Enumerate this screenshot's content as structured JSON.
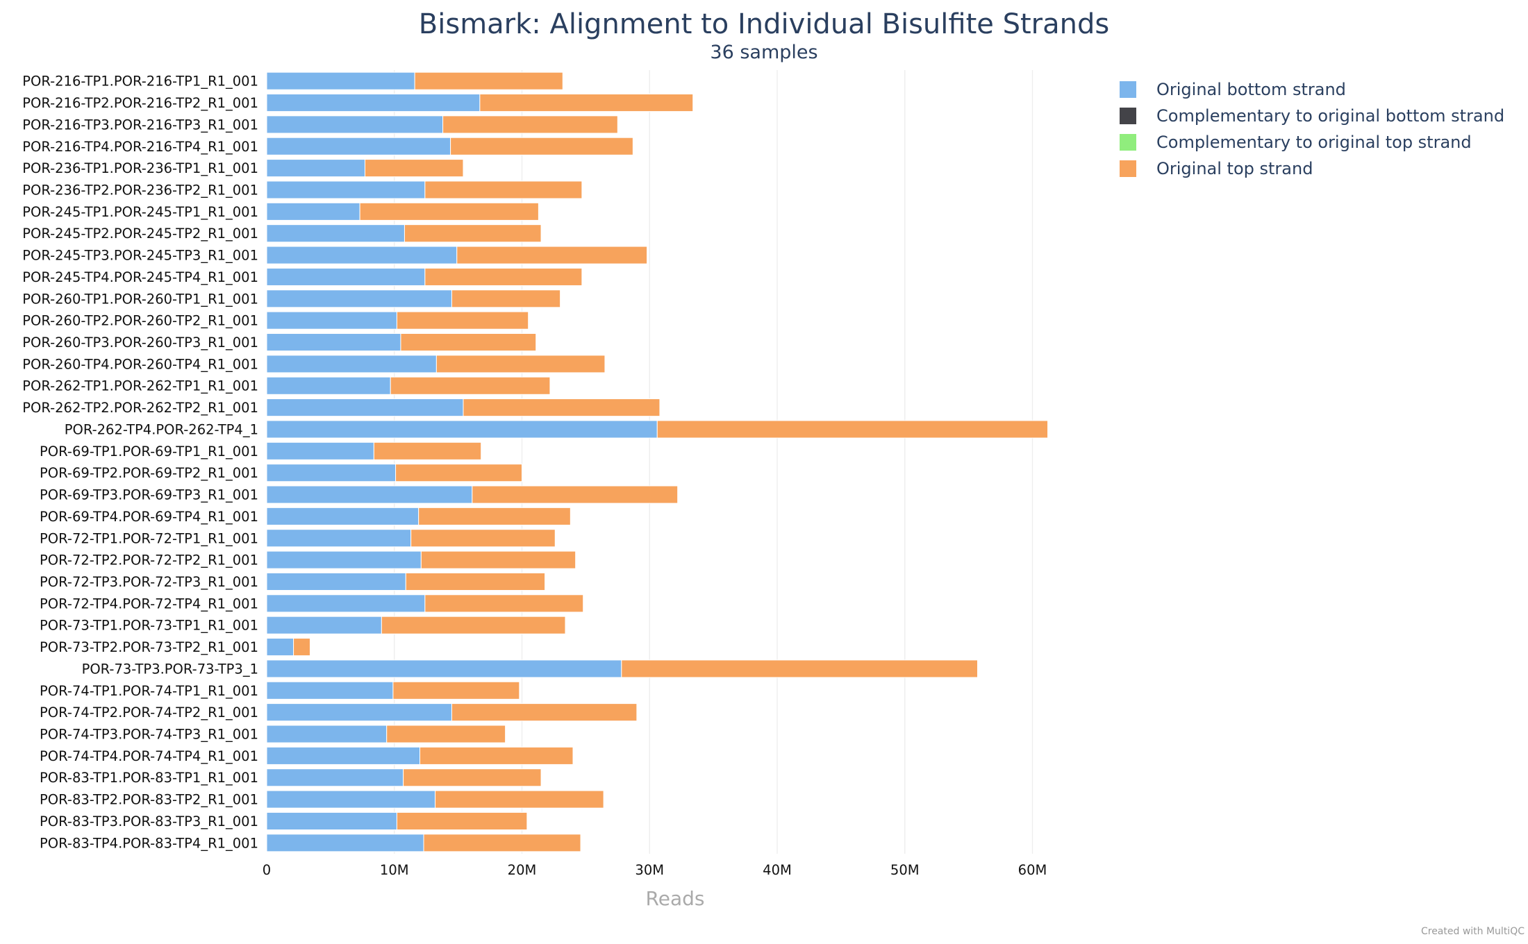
{
  "chart_data": {
    "type": "bar",
    "orientation": "horizontal",
    "stacked": true,
    "title": "Bismark: Alignment to Individual Bisulfite Strands",
    "subtitle": "36 samples",
    "xlabel": "Reads",
    "ylabel": "",
    "xlim": [
      0,
      64000000
    ],
    "xticks": [
      0,
      10000000,
      20000000,
      30000000,
      40000000,
      50000000,
      60000000
    ],
    "xtick_labels": [
      "0",
      "10M",
      "20M",
      "30M",
      "40M",
      "50M",
      "60M"
    ],
    "grid": true,
    "legend_position": "top-right",
    "categories": [
      "POR-216-TP1.POR-216-TP1_R1_001",
      "POR-216-TP2.POR-216-TP2_R1_001",
      "POR-216-TP3.POR-216-TP3_R1_001",
      "POR-216-TP4.POR-216-TP4_R1_001",
      "POR-236-TP1.POR-236-TP1_R1_001",
      "POR-236-TP2.POR-236-TP2_R1_001",
      "POR-245-TP1.POR-245-TP1_R1_001",
      "POR-245-TP2.POR-245-TP2_R1_001",
      "POR-245-TP3.POR-245-TP3_R1_001",
      "POR-245-TP4.POR-245-TP4_R1_001",
      "POR-260-TP1.POR-260-TP1_R1_001",
      "POR-260-TP2.POR-260-TP2_R1_001",
      "POR-260-TP3.POR-260-TP3_R1_001",
      "POR-260-TP4.POR-260-TP4_R1_001",
      "POR-262-TP1.POR-262-TP1_R1_001",
      "POR-262-TP2.POR-262-TP2_R1_001",
      "POR-262-TP4.POR-262-TP4_1",
      "POR-69-TP1.POR-69-TP1_R1_001",
      "POR-69-TP2.POR-69-TP2_R1_001",
      "POR-69-TP3.POR-69-TP3_R1_001",
      "POR-69-TP4.POR-69-TP4_R1_001",
      "POR-72-TP1.POR-72-TP1_R1_001",
      "POR-72-TP2.POR-72-TP2_R1_001",
      "POR-72-TP3.POR-72-TP3_R1_001",
      "POR-72-TP4.POR-72-TP4_R1_001",
      "POR-73-TP1.POR-73-TP1_R1_001",
      "POR-73-TP2.POR-73-TP2_R1_001",
      "POR-73-TP3.POR-73-TP3_1",
      "POR-74-TP1.POR-74-TP1_R1_001",
      "POR-74-TP2.POR-74-TP2_R1_001",
      "POR-74-TP3.POR-74-TP3_R1_001",
      "POR-74-TP4.POR-74-TP4_R1_001",
      "POR-83-TP1.POR-83-TP1_R1_001",
      "POR-83-TP2.POR-83-TP2_R1_001",
      "POR-83-TP3.POR-83-TP3_R1_001",
      "POR-83-TP4.POR-83-TP4_R1_001"
    ],
    "series": [
      {
        "name": "Original bottom strand",
        "color": "#7cb5ec",
        "values": [
          11600000,
          16700000,
          13800000,
          14400000,
          7700000,
          12400000,
          7300000,
          10800000,
          14900000,
          12400000,
          14500000,
          10200000,
          10500000,
          13300000,
          9700000,
          15400000,
          30600000,
          8400000,
          10100000,
          16100000,
          11900000,
          11300000,
          12100000,
          10900000,
          12400000,
          9000000,
          2100000,
          27800000,
          9900000,
          14500000,
          9400000,
          12000000,
          10700000,
          13200000,
          10200000,
          12300000
        ]
      },
      {
        "name": "Complementary to original bottom strand",
        "color": "#434348",
        "values": [
          0,
          0,
          0,
          0,
          0,
          0,
          0,
          0,
          0,
          0,
          0,
          0,
          0,
          0,
          0,
          0,
          0,
          0,
          0,
          0,
          0,
          0,
          0,
          0,
          0,
          0,
          0,
          0,
          0,
          0,
          0,
          0,
          0,
          0,
          0,
          0
        ]
      },
      {
        "name": "Complementary to original top strand",
        "color": "#90ed7d",
        "values": [
          0,
          0,
          0,
          0,
          0,
          0,
          0,
          0,
          0,
          0,
          0,
          0,
          0,
          0,
          0,
          0,
          0,
          0,
          0,
          0,
          0,
          0,
          0,
          0,
          0,
          0,
          0,
          0,
          0,
          0,
          0,
          0,
          0,
          0,
          0,
          0
        ]
      },
      {
        "name": "Original top strand",
        "color": "#f7a35c",
        "values": [
          11600000,
          16700000,
          13700000,
          14300000,
          7700000,
          12300000,
          14000000,
          10700000,
          14900000,
          12300000,
          8500000,
          10300000,
          10600000,
          13200000,
          12500000,
          15400000,
          30600000,
          8400000,
          9900000,
          16100000,
          11900000,
          11300000,
          12100000,
          10900000,
          12400000,
          14400000,
          1300000,
          27900000,
          9900000,
          14500000,
          9300000,
          12000000,
          10800000,
          13200000,
          10200000,
          12300000
        ]
      }
    ]
  },
  "credit": "Created with MultiQC"
}
